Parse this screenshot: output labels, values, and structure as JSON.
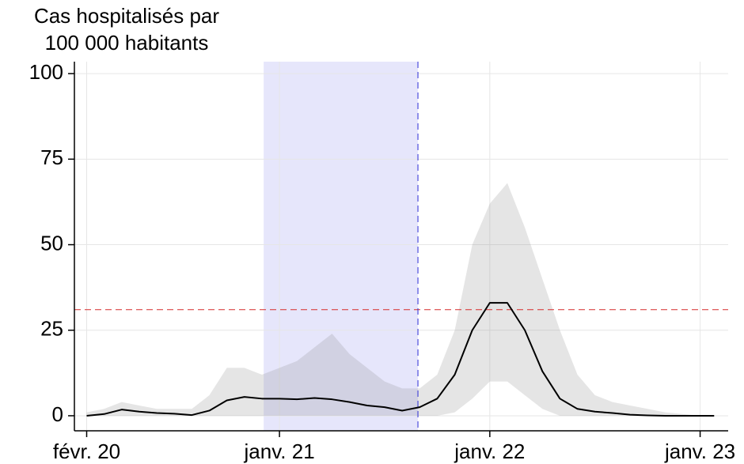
{
  "chart_data": {
    "type": "line",
    "ylabel": [
      "Cas hospitalisés par",
      "100 000 habitants"
    ],
    "x": [
      0,
      1,
      2,
      3,
      4,
      5,
      6,
      7,
      8,
      9,
      10,
      11,
      12,
      13,
      14,
      15,
      16,
      17,
      18,
      19,
      20,
      21,
      22,
      23,
      24,
      25,
      26,
      27,
      28,
      29,
      30,
      31,
      32,
      33,
      34,
      35,
      35.8
    ],
    "series": [
      {
        "color": "#000000",
        "values": [
          0,
          0.5,
          1.8,
          1.2,
          0.8,
          0.6,
          0.2,
          1.5,
          4.5,
          5.5,
          5,
          5,
          4.8,
          5.2,
          4.8,
          4,
          3,
          2.5,
          1.5,
          2.5,
          5,
          12,
          25,
          33,
          33,
          25,
          13,
          5,
          2,
          1.2,
          0.8,
          0.3,
          0.1,
          0,
          0,
          0,
          0
        ]
      }
    ],
    "band": {
      "color": "#888888",
      "lower": [
        0,
        0,
        0,
        0,
        0,
        0,
        0,
        0,
        0,
        0,
        0,
        0,
        0,
        0,
        0,
        0,
        0,
        0,
        0,
        0,
        0,
        1,
        5,
        10,
        10,
        6,
        2,
        0,
        0,
        0,
        0,
        0,
        0,
        0,
        0,
        0,
        0
      ],
      "upper": [
        1,
        2,
        4,
        3,
        2,
        2,
        2,
        6,
        14,
        14,
        12,
        14,
        16,
        20,
        24,
        18,
        14,
        10,
        8,
        8,
        12,
        25,
        50,
        62,
        68,
        55,
        40,
        25,
        12,
        6,
        4,
        3,
        2,
        1,
        0.5,
        0,
        0
      ]
    },
    "shaded_span": [
      10.1,
      18.9
    ],
    "shaded_color": "#e3e3fb",
    "vline": 18.9,
    "vline_color": "#2b2bd6",
    "hline": 31,
    "hline_color": "#d62b2b",
    "xlim": [
      -0.7,
      36.6
    ],
    "xticks": [
      {
        "value": 0,
        "label": "févr. 20"
      },
      {
        "value": 11,
        "label": "janv. 21"
      },
      {
        "value": 23,
        "label": "janv. 22"
      },
      {
        "value": 35,
        "label": "janv. 23"
      }
    ],
    "ylim": [
      -4.4,
      103.5
    ],
    "yticks": [
      0,
      25,
      50,
      75,
      100
    ],
    "grid": true
  }
}
